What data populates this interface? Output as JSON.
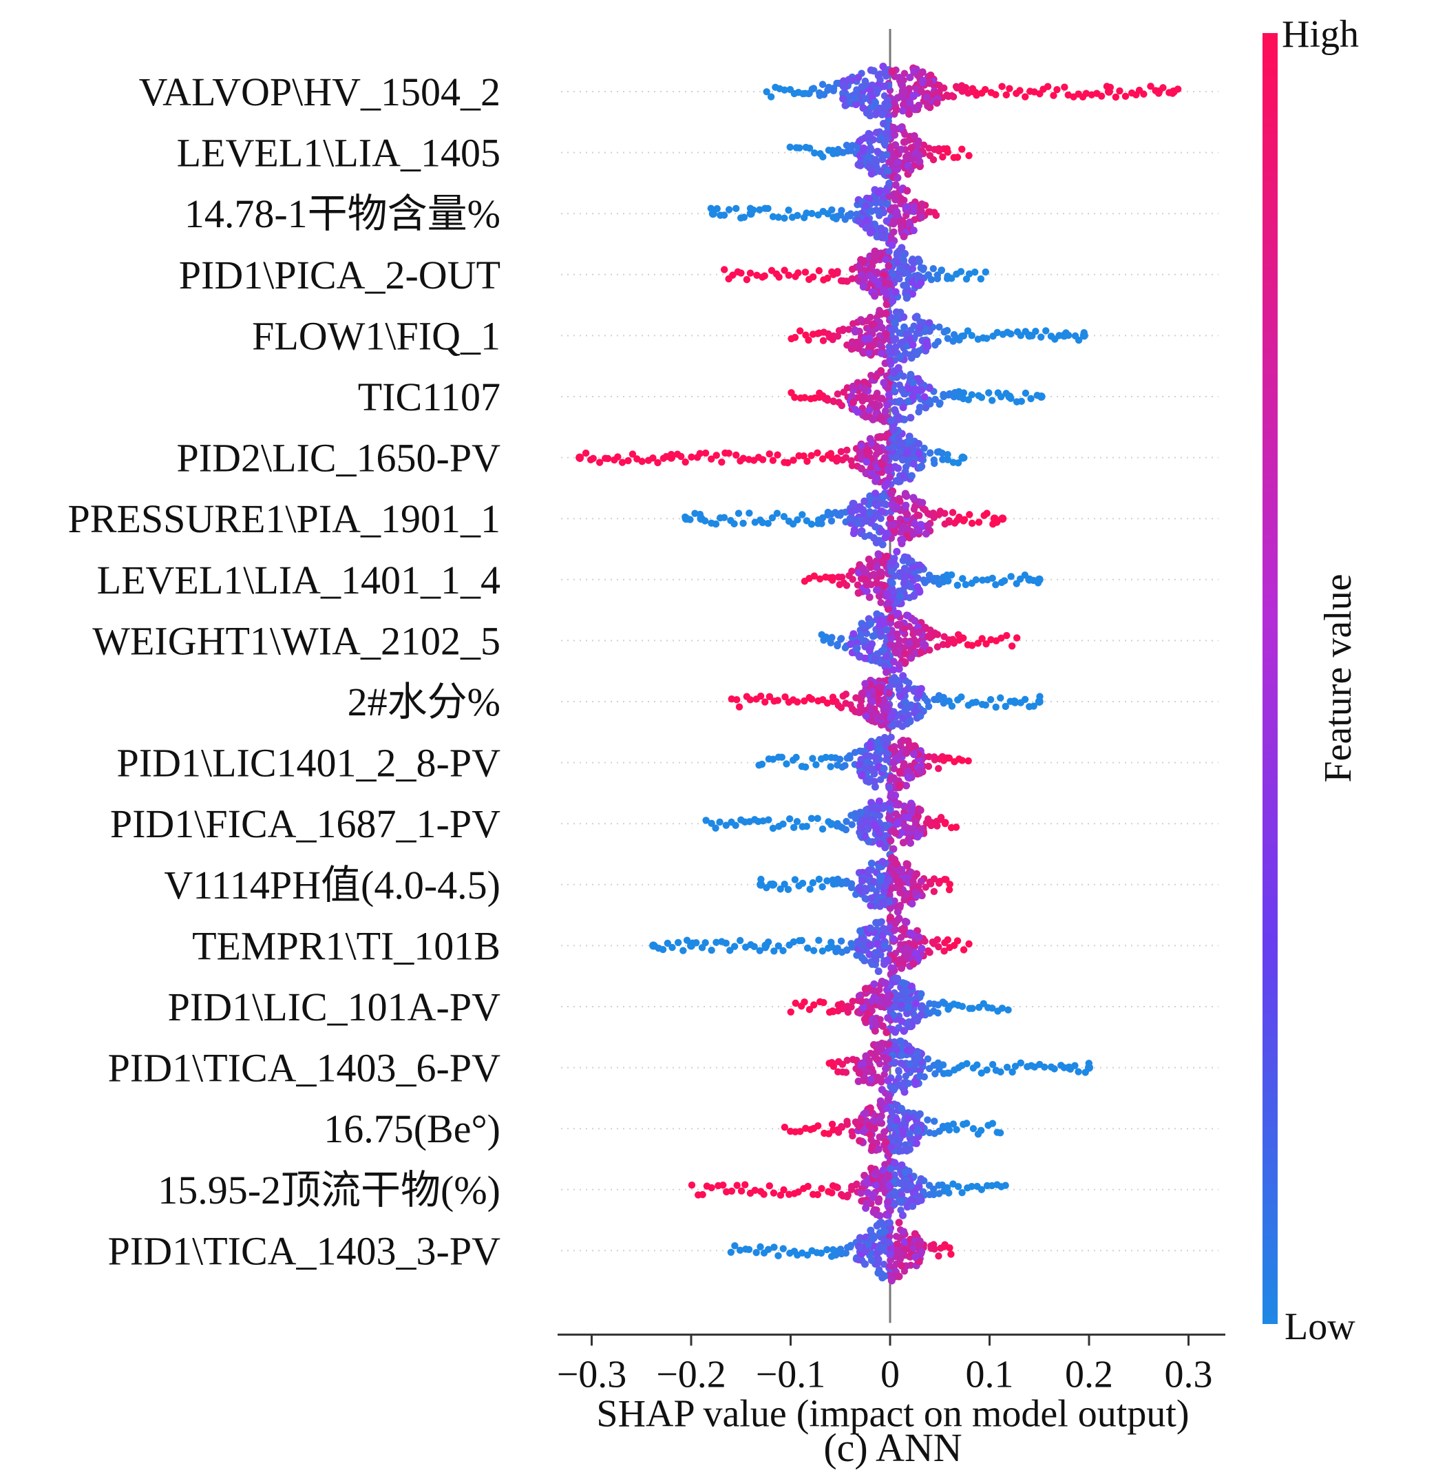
{
  "chart_data": {
    "type": "scatter",
    "subtype": "shap-beeswarm",
    "caption": "(c) ANN",
    "xlabel": "SHAP value (impact on model output)",
    "xlim": [
      -0.34,
      0.32
    ],
    "xticks": [
      -0.3,
      -0.2,
      -0.1,
      0,
      0.1,
      0.2,
      0.3
    ],
    "xtick_labels": [
      "−0.3",
      "−0.2",
      "−0.1",
      "0",
      "0.1",
      "0.2",
      "0.3"
    ],
    "colorbar": {
      "label": "Feature value",
      "high_label": "High",
      "low_label": "Low",
      "high_color": "#ff0d57",
      "low_color": "#1e88e5"
    },
    "features": [
      {
        "name": "VALVOP\\HV_1504_2",
        "left": -0.125,
        "right": 0.29,
        "left_color": "low",
        "right_color": "high",
        "core": 0.03,
        "far": [
          {
            "v": 0.22,
            "c": "high"
          },
          {
            "v": 0.27,
            "c": "high"
          },
          {
            "v": 0.285,
            "c": "high"
          }
        ]
      },
      {
        "name": "LEVEL1\\LIA_1405",
        "left": -0.1,
        "right": 0.078,
        "left_color": "low",
        "right_color": "high",
        "core": 0.02,
        "far": []
      },
      {
        "name": "14.78-1干物含量%",
        "left": -0.18,
        "right": 0.045,
        "left_color": "low",
        "right_color": "high",
        "core": 0.02,
        "far": [
          {
            "v": -0.178,
            "c": "low"
          },
          {
            "v": -0.14,
            "c": "low"
          }
        ]
      },
      {
        "name": "PID1\\PICA_2-OUT",
        "left": -0.168,
        "right": 0.095,
        "left_color": "high",
        "right_color": "low",
        "core": 0.02,
        "far": []
      },
      {
        "name": "FLOW1\\FIQ_1",
        "left": -0.1,
        "right": 0.195,
        "left_color": "high",
        "right_color": "low",
        "core": 0.025,
        "far": [
          {
            "v": 0.14,
            "c": "low"
          },
          {
            "v": 0.175,
            "c": "low"
          },
          {
            "v": 0.195,
            "c": "low"
          }
        ]
      },
      {
        "name": "TIC1107",
        "left": -0.1,
        "right": 0.152,
        "left_color": "high",
        "right_color": "low",
        "core": 0.025,
        "far": [
          {
            "v": 0.12,
            "c": "low"
          },
          {
            "v": 0.152,
            "c": "low"
          }
        ]
      },
      {
        "name": "PID2\\LIC_1650-PV",
        "left": -0.312,
        "right": 0.073,
        "left_color": "high",
        "right_color": "low",
        "core": 0.02,
        "far": [
          {
            "v": -0.312,
            "c": "high"
          },
          {
            "v": -0.22,
            "c": "high"
          },
          {
            "v": 0.073,
            "c": "low"
          }
        ]
      },
      {
        "name": "PRESSURE1\\PIA_1901_1",
        "left": -0.205,
        "right": 0.113,
        "left_color": "low",
        "right_color": "high",
        "core": 0.025,
        "far": [
          {
            "v": -0.205,
            "c": "low"
          },
          {
            "v": -0.19,
            "c": "low"
          },
          {
            "v": 0.105,
            "c": "high"
          },
          {
            "v": 0.113,
            "c": "high"
          }
        ]
      },
      {
        "name": "LEVEL1\\LIA_1401_1_4",
        "left": -0.085,
        "right": 0.15,
        "left_color": "high",
        "right_color": "low",
        "core": 0.02,
        "far": [
          {
            "v": 0.14,
            "c": "low"
          },
          {
            "v": 0.15,
            "c": "low"
          }
        ]
      },
      {
        "name": "WEIGHT1\\WIA_2102_5",
        "left": -0.068,
        "right": 0.127,
        "left_color": "low",
        "right_color": "high",
        "core": 0.025,
        "far": []
      },
      {
        "name": "2#水分%",
        "left": -0.16,
        "right": 0.15,
        "left_color": "high",
        "right_color": "low",
        "core": 0.02,
        "far": [
          {
            "v": 0.125,
            "c": "low"
          },
          {
            "v": 0.15,
            "c": "low"
          }
        ]
      },
      {
        "name": "PID1\\LIC1401_2_8-PV",
        "left": -0.133,
        "right": 0.078,
        "left_color": "low",
        "right_color": "high",
        "core": 0.02,
        "far": []
      },
      {
        "name": "PID1\\FICA_1687_1-PV",
        "left": -0.185,
        "right": 0.066,
        "left_color": "low",
        "right_color": "high",
        "core": 0.02,
        "far": []
      },
      {
        "name": "V1114PH值(4.0-4.5)",
        "left": -0.13,
        "right": 0.06,
        "left_color": "low",
        "right_color": "high",
        "core": 0.02,
        "far": [
          {
            "v": -0.13,
            "c": "low"
          },
          {
            "v": -0.118,
            "c": "low"
          }
        ]
      },
      {
        "name": "TEMPR1\\TI_101B",
        "left": -0.238,
        "right": 0.078,
        "left_color": "low",
        "right_color": "high",
        "core": 0.02,
        "far": [
          {
            "v": -0.238,
            "c": "low"
          },
          {
            "v": -0.2,
            "c": "low"
          },
          {
            "v": -0.125,
            "c": "low"
          }
        ]
      },
      {
        "name": "PID1\\LIC_101A-PV",
        "left": -0.1,
        "right": 0.118,
        "left_color": "high",
        "right_color": "low",
        "core": 0.02,
        "far": []
      },
      {
        "name": "PID1\\TICA_1403_6-PV",
        "left": -0.062,
        "right": 0.2,
        "left_color": "high",
        "right_color": "low",
        "core": 0.02,
        "far": [
          {
            "v": 0.18,
            "c": "low"
          },
          {
            "v": 0.2,
            "c": "low"
          }
        ]
      },
      {
        "name": "16.75(Be°)",
        "left": -0.105,
        "right": 0.112,
        "left_color": "high",
        "right_color": "low",
        "core": 0.02,
        "far": []
      },
      {
        "name": "15.95-2顶流干物(%)",
        "left": -0.198,
        "right": 0.116,
        "left_color": "high",
        "right_color": "low",
        "core": 0.02,
        "far": []
      },
      {
        "name": "PID1\\TICA_1403_3-PV",
        "left": -0.16,
        "right": 0.06,
        "left_color": "low",
        "right_color": "high",
        "core": 0.02,
        "far": []
      }
    ]
  }
}
